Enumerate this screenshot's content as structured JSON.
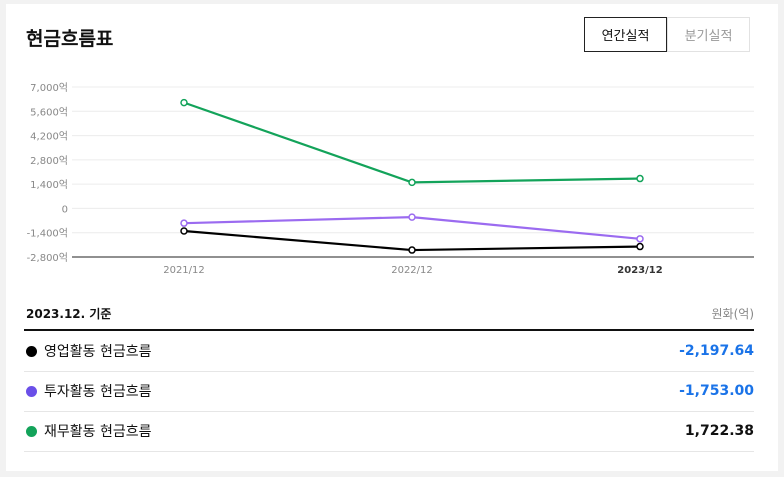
{
  "header": {
    "title": "현금흐름표"
  },
  "tabs": [
    {
      "label": "연간실적",
      "active": true
    },
    {
      "label": "분기실적",
      "active": false
    }
  ],
  "table": {
    "basis": "2023.12. 기준",
    "unit": "원화(억)",
    "rows": [
      {
        "label": "영업활동 현금흐름",
        "value": "-2,197.64",
        "color": "#000000"
      },
      {
        "label": "투자활동 현금흐름",
        "value": "-1,753.00",
        "color": "#6a4fe8"
      },
      {
        "label": "재무활동 현금흐름",
        "value": "1,722.38",
        "color": "#13a35a"
      }
    ]
  },
  "chart_data": {
    "type": "line",
    "categories": [
      "2021/12",
      "2022/12",
      "2023/12"
    ],
    "ylim": [
      -2800,
      7000
    ],
    "y_ticks": [
      7000,
      5600,
      4200,
      2800,
      1400,
      0,
      -1400,
      -2800
    ],
    "y_tick_labels": [
      "7,000억",
      "5,600억",
      "4,200억",
      "2,800억",
      "1,400억",
      "0",
      "-1,400억",
      "-2,800억"
    ],
    "grid": true,
    "series": [
      {
        "name": "영업활동 현금흐름",
        "color": "#000000",
        "values": [
          -1300,
          -2400,
          -2197.64
        ]
      },
      {
        "name": "투자활동 현금흐름",
        "color": "#9b6bf0",
        "values": [
          -850,
          -500,
          -1753.0
        ]
      },
      {
        "name": "재무활동 현금흐름",
        "color": "#13a35a",
        "values": [
          6100,
          1500,
          1722.38
        ]
      }
    ]
  }
}
